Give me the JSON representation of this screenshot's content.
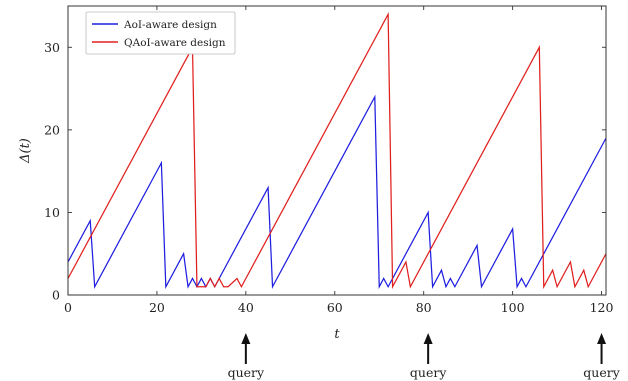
{
  "chart_data": {
    "type": "line",
    "xlabel": "t",
    "ylabel": "Δ(t)",
    "xlim": [
      0,
      121
    ],
    "ylim": [
      0,
      35
    ],
    "xticks": [
      0,
      20,
      40,
      60,
      80,
      100,
      120
    ],
    "yticks": [
      0,
      10,
      20,
      30
    ],
    "grid": false,
    "legend_position": "top-left",
    "series": [
      {
        "name": "AoI-aware design",
        "color": "#1f1fe0",
        "points": [
          [
            0,
            4
          ],
          [
            5,
            9
          ],
          [
            6,
            1
          ],
          [
            21,
            16
          ],
          [
            22,
            1
          ],
          [
            26,
            5
          ],
          [
            27,
            1
          ],
          [
            28,
            2
          ],
          [
            29,
            1
          ],
          [
            30,
            2
          ],
          [
            31,
            1
          ],
          [
            32,
            2
          ],
          [
            33,
            1
          ],
          [
            45,
            13
          ],
          [
            46,
            1
          ],
          [
            69,
            24
          ],
          [
            70,
            1
          ],
          [
            71,
            2
          ],
          [
            72,
            1
          ],
          [
            73,
            2
          ],
          [
            81,
            10
          ],
          [
            82,
            1
          ],
          [
            84,
            3
          ],
          [
            85,
            1
          ],
          [
            86,
            2
          ],
          [
            87,
            1
          ],
          [
            92,
            6
          ],
          [
            93,
            1
          ],
          [
            100,
            8
          ],
          [
            101,
            1
          ],
          [
            102,
            2
          ],
          [
            103,
            1
          ],
          [
            121,
            19
          ]
        ]
      },
      {
        "name": "QAoI-aware design",
        "color": "#e0201f",
        "points": [
          [
            0,
            2
          ],
          [
            28,
            30
          ],
          [
            29,
            1
          ],
          [
            31,
            1
          ],
          [
            32,
            2
          ],
          [
            33,
            1
          ],
          [
            34,
            2
          ],
          [
            35,
            1
          ],
          [
            36,
            1
          ],
          [
            38,
            2
          ],
          [
            39,
            1
          ],
          [
            72,
            34
          ],
          [
            73,
            1
          ],
          [
            76,
            4
          ],
          [
            77,
            1
          ],
          [
            106,
            30
          ],
          [
            107,
            1
          ],
          [
            109,
            3
          ],
          [
            110,
            1
          ],
          [
            113,
            4
          ],
          [
            114,
            1
          ],
          [
            116,
            3
          ],
          [
            117,
            1
          ],
          [
            121,
            5
          ]
        ]
      }
    ],
    "annotations": [
      {
        "text": "query",
        "x": 40
      },
      {
        "text": "query",
        "x": 81
      },
      {
        "text": "query",
        "x": 120
      }
    ]
  }
}
